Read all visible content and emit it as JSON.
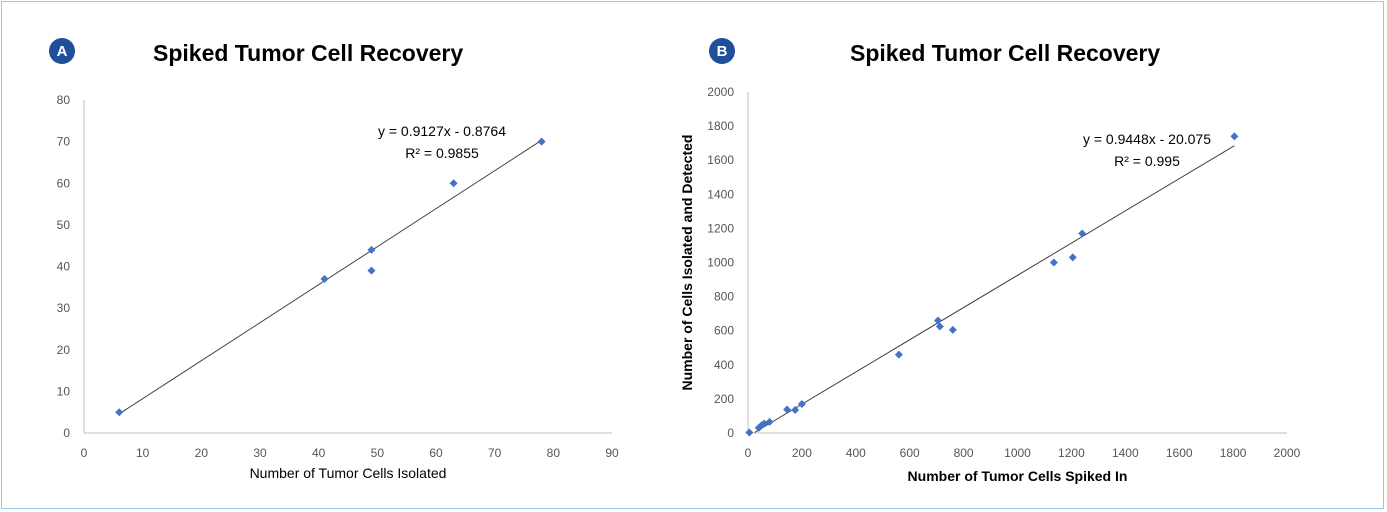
{
  "panels": [
    {
      "badge": "A",
      "title": "Spiked Tumor Cell Recovery",
      "equation": "y = 0.9127x - 0.8764",
      "r2": "R² = 0.9855"
    },
    {
      "badge": "B",
      "title": "Spiked Tumor Cell Recovery",
      "equation": "y = 0.9448x - 20.075",
      "r2": "R² = 0.995"
    }
  ],
  "colors": {
    "marker": "#4472c4",
    "trendline": "#404040",
    "axis": "#bfbfbf",
    "badge": "#1f4e9a",
    "frame": "#8ecdf0"
  },
  "chart_data": [
    {
      "type": "scatter",
      "title": "Spiked Tumor Cell Recovery",
      "xlabel": "Number of Tumor Cells Isolated",
      "ylabel": "",
      "xlim": [
        0,
        90
      ],
      "ylim": [
        0,
        80
      ],
      "xticks": [
        0,
        10,
        20,
        30,
        40,
        50,
        60,
        70,
        80,
        90
      ],
      "yticks": [
        0,
        10,
        20,
        30,
        40,
        50,
        60,
        70,
        80
      ],
      "grid": false,
      "points": [
        {
          "x": 6,
          "y": 5
        },
        {
          "x": 41,
          "y": 37
        },
        {
          "x": 49,
          "y": 39
        },
        {
          "x": 49,
          "y": 44
        },
        {
          "x": 63,
          "y": 60
        },
        {
          "x": 78,
          "y": 70
        }
      ],
      "trendline": {
        "slope": 0.9127,
        "intercept": -0.8764,
        "x_range": [
          6,
          78
        ]
      }
    },
    {
      "type": "scatter",
      "title": "Spiked Tumor Cell Recovery",
      "xlabel": "Number of Tumor Cells Spiked In",
      "ylabel": "Number of Cells Isolated and Detected",
      "xlim": [
        0,
        2000
      ],
      "ylim": [
        0,
        2000
      ],
      "xticks": [
        0,
        200,
        400,
        600,
        800,
        1000,
        1200,
        1400,
        1600,
        1800,
        2000
      ],
      "yticks": [
        0,
        200,
        400,
        600,
        800,
        1000,
        1200,
        1400,
        1600,
        1800,
        2000
      ],
      "grid": false,
      "points": [
        {
          "x": 5,
          "y": 3
        },
        {
          "x": 40,
          "y": 30
        },
        {
          "x": 50,
          "y": 45
        },
        {
          "x": 60,
          "y": 55
        },
        {
          "x": 80,
          "y": 65
        },
        {
          "x": 145,
          "y": 138
        },
        {
          "x": 175,
          "y": 135
        },
        {
          "x": 200,
          "y": 170
        },
        {
          "x": 560,
          "y": 460
        },
        {
          "x": 705,
          "y": 660
        },
        {
          "x": 712,
          "y": 625
        },
        {
          "x": 760,
          "y": 605
        },
        {
          "x": 1135,
          "y": 1000
        },
        {
          "x": 1205,
          "y": 1030
        },
        {
          "x": 1240,
          "y": 1170
        },
        {
          "x": 1805,
          "y": 1740
        }
      ],
      "trendline": {
        "slope": 0.9448,
        "intercept": -20.075,
        "x_range": [
          25,
          1805
        ]
      }
    }
  ]
}
